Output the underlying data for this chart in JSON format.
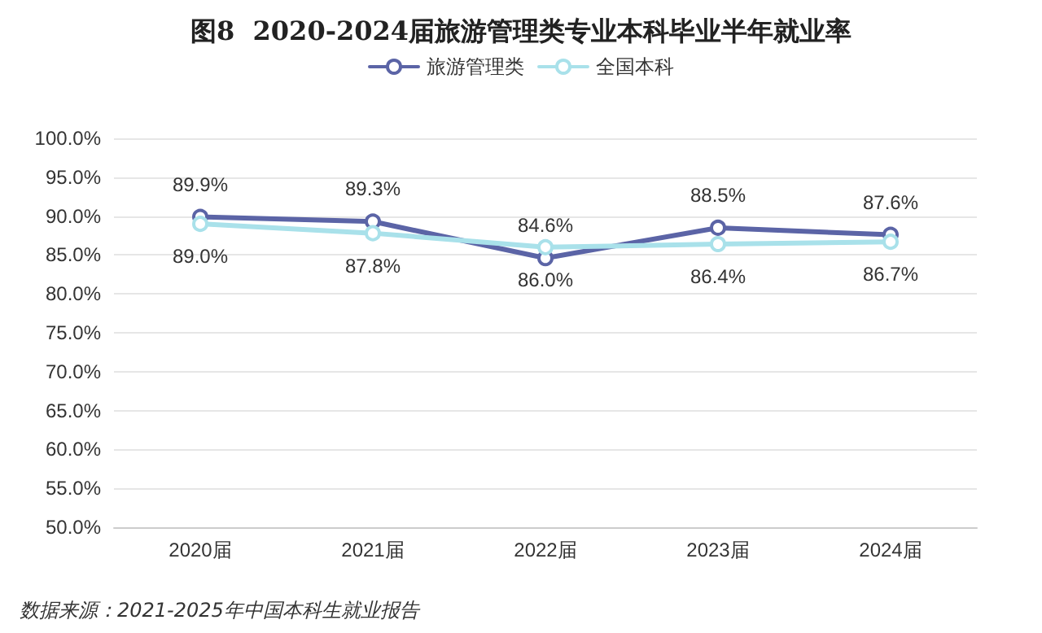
{
  "chart_data": {
    "type": "line",
    "title": "图8  2020-2024届旅游管理类专业本科毕业半年就业率",
    "categories": [
      "2020届",
      "2021届",
      "2022届",
      "2023届",
      "2024届"
    ],
    "series": [
      {
        "name": "旅游管理类",
        "color": "#5b64a6",
        "values": [
          89.9,
          89.3,
          84.6,
          88.5,
          87.6
        ],
        "value_labels": [
          "89.9%",
          "89.3%",
          "84.6%",
          "88.5%",
          "87.6%"
        ]
      },
      {
        "name": "全国本科",
        "color": "#a9e1ea",
        "values": [
          89.0,
          87.8,
          86.0,
          86.4,
          86.7
        ],
        "value_labels": [
          "89.0%",
          "87.8%",
          "86.0%",
          "86.4%",
          "86.7%"
        ]
      }
    ],
    "ylim": [
      50,
      100
    ],
    "yticks": [
      {
        "value": 50,
        "label": "50.0%"
      },
      {
        "value": 55,
        "label": "55.0%"
      },
      {
        "value": 60,
        "label": "60.0%"
      },
      {
        "value": 65,
        "label": "65.0%"
      },
      {
        "value": 70,
        "label": "70.0%"
      },
      {
        "value": 75,
        "label": "75.0%"
      },
      {
        "value": 80,
        "label": "80.0%"
      },
      {
        "value": 85,
        "label": "85.0%"
      },
      {
        "value": 90,
        "label": "90.0%"
      },
      {
        "value": 95,
        "label": "95.0%"
      },
      {
        "value": 100,
        "label": "100.0%"
      }
    ],
    "grid": "y",
    "legend": "top",
    "marker": "circle",
    "line_style": "solid",
    "annotations": [
      "数据来源：2021-2025年中国本科生就业报告"
    ]
  }
}
